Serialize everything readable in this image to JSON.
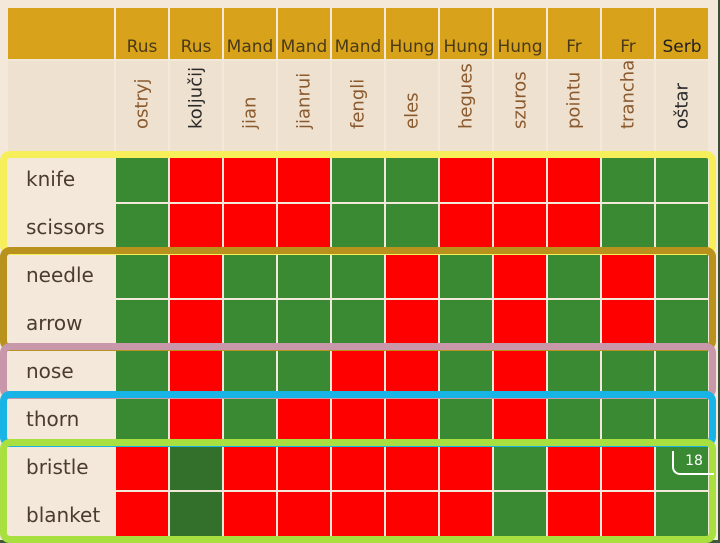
{
  "languages": [
    "Rus",
    "Rus",
    "Mand",
    "Mand",
    "Mand",
    "Hung",
    "Hung",
    "Hung",
    "Fr",
    "Fr",
    "Serb"
  ],
  "words": [
    "ostryj",
    "koljučij",
    "jian",
    "jianrui",
    "fengli",
    "eles",
    "hegues",
    "szuros",
    "pointu",
    "tranchant",
    "oštar"
  ],
  "rows": [
    {
      "label": "knife",
      "cells": [
        "g",
        "r",
        "r",
        "r",
        "g",
        "g",
        "r",
        "r",
        "r",
        "g",
        "g"
      ]
    },
    {
      "label": "scissors",
      "cells": [
        "g",
        "r",
        "r",
        "r",
        "g",
        "g",
        "r",
        "r",
        "r",
        "g",
        "g"
      ]
    },
    {
      "label": "needle",
      "cells": [
        "g",
        "r",
        "g",
        "g",
        "g",
        "r",
        "g",
        "r",
        "g",
        "r",
        "g"
      ]
    },
    {
      "label": "arrow",
      "cells": [
        "g",
        "r",
        "g",
        "g",
        "g",
        "r",
        "g",
        "r",
        "g",
        "r",
        "g"
      ]
    },
    {
      "label": "nose",
      "cells": [
        "g",
        "r",
        "g",
        "g",
        "r",
        "r",
        "g",
        "r",
        "g",
        "g",
        "g"
      ]
    },
    {
      "label": "thorn",
      "cells": [
        "g",
        "r",
        "g",
        "r",
        "r",
        "r",
        "g",
        "r",
        "g",
        "g",
        "g"
      ]
    },
    {
      "label": "bristle",
      "cells": [
        "r",
        "d",
        "r",
        "r",
        "r",
        "r",
        "r",
        "g",
        "r",
        "r",
        "g"
      ]
    },
    {
      "label": "blanket",
      "cells": [
        "r",
        "d",
        "r",
        "r",
        "r",
        "r",
        "r",
        "g",
        "r",
        "r",
        "g"
      ]
    }
  ],
  "groups": [
    {
      "rows": [
        0,
        1
      ],
      "color": "#f7ef5a"
    },
    {
      "rows": [
        2,
        3
      ],
      "color": "#b8921c"
    },
    {
      "rows": [
        4
      ],
      "color": "#c898aa"
    },
    {
      "rows": [
        5
      ],
      "color": "#19b4e6"
    },
    {
      "rows": [
        6,
        7
      ],
      "color": "#a8e040"
    }
  ],
  "colors": {
    "green": "#3a8a34",
    "red": "#ff0000",
    "dark_green": "#33702c",
    "header": "#d8a21b"
  },
  "page_number": "18"
}
